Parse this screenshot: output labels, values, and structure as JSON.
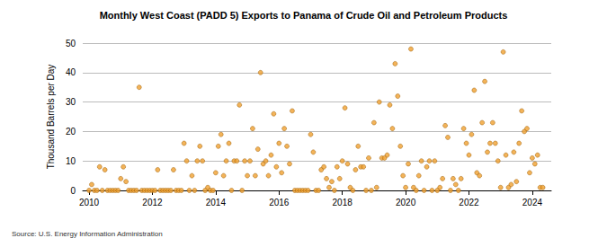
{
  "chart_data": {
    "type": "scatter",
    "title": "Monthly West Coast (PADD 5) Exports to Panama of Crude Oil and Petroleum Products",
    "y_label": "Thousand Barrels per Day",
    "source": "Source: U.S. Energy Information Administration",
    "color": "#f0a030",
    "marker": "circle",
    "grid": true,
    "xlim": [
      2009.8,
      2024.6
    ],
    "xticks": [
      2010,
      2012,
      2014,
      2016,
      2018,
      2020,
      2022,
      2024
    ],
    "ylim": [
      0,
      50
    ],
    "yticks": [
      0,
      10,
      20,
      30,
      40,
      50
    ],
    "x": [
      2010,
      2010.083,
      2010.167,
      2010.25,
      2010.333,
      2010.417,
      2010.5,
      2010.583,
      2010.667,
      2010.75,
      2010.833,
      2010.917,
      2011,
      2011.083,
      2011.167,
      2011.25,
      2011.333,
      2011.417,
      2011.5,
      2011.583,
      2011.667,
      2011.75,
      2011.833,
      2011.917,
      2012,
      2012.083,
      2012.167,
      2012.25,
      2012.333,
      2012.417,
      2012.5,
      2012.583,
      2012.667,
      2012.75,
      2012.833,
      2012.917,
      2013,
      2013.083,
      2013.167,
      2013.25,
      2013.333,
      2013.417,
      2013.5,
      2013.583,
      2013.667,
      2013.75,
      2013.833,
      2013.917,
      2014,
      2014.083,
      2014.167,
      2014.25,
      2014.333,
      2014.417,
      2014.5,
      2014.583,
      2014.667,
      2014.75,
      2014.833,
      2014.917,
      2015,
      2015.083,
      2015.167,
      2015.25,
      2015.333,
      2015.417,
      2015.5,
      2015.583,
      2015.667,
      2015.75,
      2015.833,
      2015.917,
      2016,
      2016.083,
      2016.167,
      2016.25,
      2016.333,
      2016.417,
      2016.5,
      2016.583,
      2016.667,
      2016.75,
      2016.833,
      2016.917,
      2017,
      2017.083,
      2017.167,
      2017.25,
      2017.333,
      2017.417,
      2017.5,
      2017.583,
      2017.667,
      2017.75,
      2017.833,
      2017.917,
      2018,
      2018.083,
      2018.167,
      2018.25,
      2018.333,
      2018.417,
      2018.5,
      2018.583,
      2018.667,
      2018.75,
      2018.833,
      2018.917,
      2019,
      2019.083,
      2019.167,
      2019.25,
      2019.333,
      2019.417,
      2019.5,
      2019.583,
      2019.667,
      2019.75,
      2019.833,
      2019.917,
      2020,
      2020.083,
      2020.167,
      2020.25,
      2020.333,
      2020.417,
      2020.5,
      2020.583,
      2020.667,
      2020.75,
      2020.833,
      2020.917,
      2021,
      2021.083,
      2021.167,
      2021.25,
      2021.333,
      2021.417,
      2021.5,
      2021.583,
      2021.667,
      2021.75,
      2021.833,
      2021.917,
      2022,
      2022.083,
      2022.167,
      2022.25,
      2022.333,
      2022.417,
      2022.5,
      2022.583,
      2022.667,
      2022.75,
      2022.833,
      2022.917,
      2023,
      2023.083,
      2023.167,
      2023.25,
      2023.333,
      2023.417,
      2023.5,
      2023.583,
      2023.667,
      2023.75,
      2023.833,
      2023.917,
      2024,
      2024.083,
      2024.167,
      2024.25,
      2024.333
    ],
    "values": [
      0,
      2,
      0,
      0,
      8,
      0,
      7,
      0,
      0,
      0,
      0,
      0,
      4,
      8,
      3,
      0,
      0,
      0,
      0,
      35,
      0,
      0,
      0,
      0,
      0,
      0,
      7,
      0,
      0,
      0,
      0,
      0,
      7,
      0,
      0,
      0,
      16,
      10,
      0,
      5,
      0,
      10,
      15,
      10,
      0,
      1,
      0,
      0,
      6,
      15,
      19,
      5,
      10,
      16,
      0,
      10,
      10,
      29,
      0,
      10,
      5,
      10,
      21,
      5,
      14,
      40,
      9,
      10,
      5,
      12,
      26,
      8,
      16,
      6,
      21,
      15,
      9,
      27,
      0,
      0,
      0,
      0,
      0,
      0,
      19,
      13,
      0,
      0,
      7,
      8,
      4,
      1,
      3,
      0,
      8,
      4,
      10,
      28,
      9,
      1,
      0,
      7,
      15,
      8,
      8,
      0,
      11,
      0,
      23,
      1,
      30,
      11,
      11,
      12,
      29,
      21,
      43,
      32,
      15,
      5,
      1,
      9,
      48,
      1,
      0,
      5,
      10,
      0,
      8,
      10,
      0,
      10,
      0,
      1,
      4,
      22,
      18,
      0,
      4,
      2,
      0,
      4,
      21,
      16,
      12,
      19,
      34,
      6,
      5,
      23,
      37,
      13,
      16,
      23,
      16,
      10,
      1,
      47,
      12,
      1,
      2,
      13,
      3,
      16,
      27,
      20,
      21,
      6,
      11,
      9,
      12,
      1,
      1
    ]
  }
}
